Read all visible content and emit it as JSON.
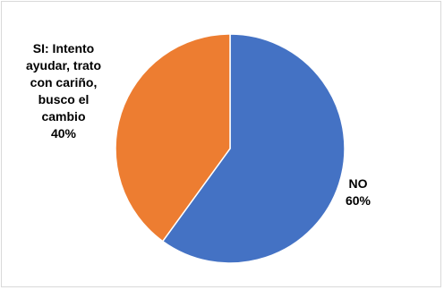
{
  "chart_data": {
    "type": "pie",
    "title": "",
    "slices": [
      {
        "label": "NO",
        "value": 60,
        "value_label": "60%",
        "color": "#4472C4"
      },
      {
        "label": "SI: Intento ayudar, trato con cariño, busco el cambio",
        "value": 40,
        "value_label": "40%",
        "color": "#ED7D31"
      }
    ],
    "start_angle_deg": 0,
    "direction": "clockwise",
    "legend": "none"
  },
  "labels": {
    "si_text": "SI: Intento\nayudar, trato\ncon cariño,\nbusco el\ncambio\n40%",
    "no_text": "NO\n60%"
  }
}
